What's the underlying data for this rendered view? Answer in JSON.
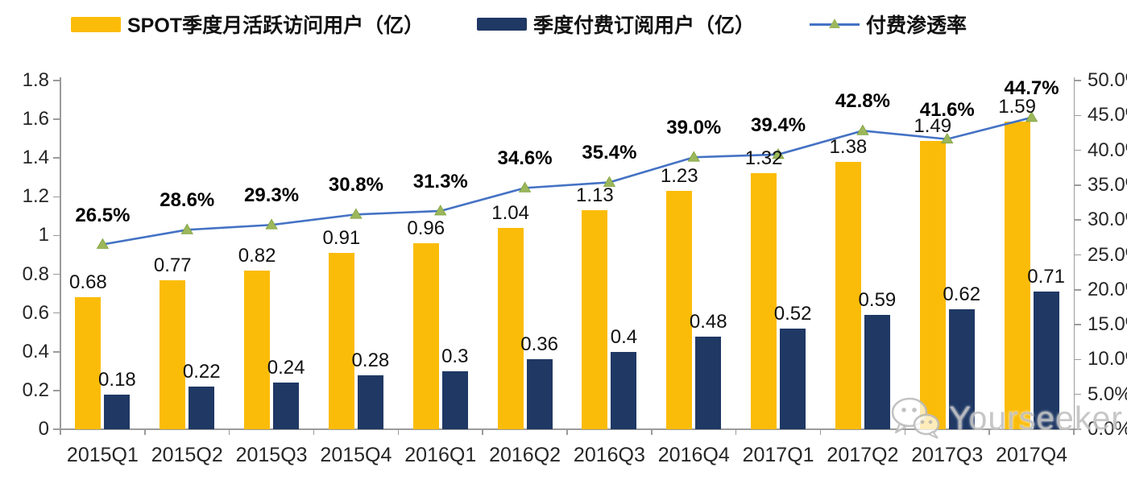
{
  "legend": {
    "items": [
      {
        "label": "SPOT季度月活跃访问用户（亿）"
      },
      {
        "label": "季度付费订阅用户（亿）"
      },
      {
        "label": "付费渗透率"
      }
    ]
  },
  "chart_data": {
    "type": "combo-bar-line",
    "categories": [
      "2015Q1",
      "2015Q2",
      "2015Q3",
      "2015Q4",
      "2016Q1",
      "2016Q2",
      "2016Q3",
      "2016Q4",
      "2017Q1",
      "2017Q2",
      "2017Q3",
      "2017Q4"
    ],
    "series": [
      {
        "name": "SPOT季度月活跃访问用户（亿）",
        "type": "bar",
        "axis": "left",
        "values": [
          0.68,
          0.77,
          0.82,
          0.91,
          0.96,
          1.04,
          1.13,
          1.23,
          1.32,
          1.38,
          1.49,
          1.59
        ],
        "labels": [
          "0.68",
          "0.77",
          "0.82",
          "0.91",
          "0.96",
          "1.04",
          "1.13",
          "1.23",
          "1.32",
          "1.38",
          "1.49",
          "1.59"
        ]
      },
      {
        "name": "季度付费订阅用户（亿）",
        "type": "bar",
        "axis": "left",
        "values": [
          0.18,
          0.22,
          0.24,
          0.28,
          0.3,
          0.36,
          0.4,
          0.48,
          0.52,
          0.59,
          0.62,
          0.71
        ],
        "labels": [
          "0.18",
          "0.22",
          "0.24",
          "0.28",
          "0.3",
          "0.36",
          "0.4",
          "0.48",
          "0.52",
          "0.59",
          "0.62",
          "0.71"
        ]
      },
      {
        "name": "付费渗透率",
        "type": "line",
        "axis": "right",
        "values": [
          26.5,
          28.6,
          29.3,
          30.8,
          31.3,
          34.6,
          35.4,
          39.0,
          39.4,
          42.8,
          41.6,
          44.7
        ],
        "labels": [
          "26.5%",
          "28.6%",
          "29.3%",
          "30.8%",
          "31.3%",
          "34.6%",
          "35.4%",
          "39.0%",
          "39.4%",
          "42.8%",
          "41.6%",
          "44.7%"
        ]
      }
    ],
    "left_axis": {
      "min": 0,
      "max": 1.8,
      "step": 0.2,
      "tick_labels": [
        "0",
        "0.2",
        "0.4",
        "0.6",
        "0.8",
        "1",
        "1.2",
        "1.4",
        "1.6",
        "1.8"
      ]
    },
    "right_axis": {
      "min": 0,
      "max": 50,
      "step": 5,
      "tick_labels": [
        "0.0%",
        "5.0%",
        "10.0%",
        "15.0%",
        "20.0%",
        "25.0%",
        "30.0%",
        "35.0%",
        "40.0%",
        "45.0%",
        "50.0%"
      ]
    },
    "grid": false,
    "legend_position": "top"
  },
  "watermark": {
    "text": "Yourseeker",
    "icon": "wechat-icon"
  },
  "colors": {
    "mau_bar": "#FBBC09",
    "subs_bar": "#1F3864",
    "line": "#4472C4",
    "marker": "#9CB75B",
    "marker_edge": "#7DA23E",
    "axis": "#9B9B9B",
    "watermark": "#C3C3C3"
  }
}
